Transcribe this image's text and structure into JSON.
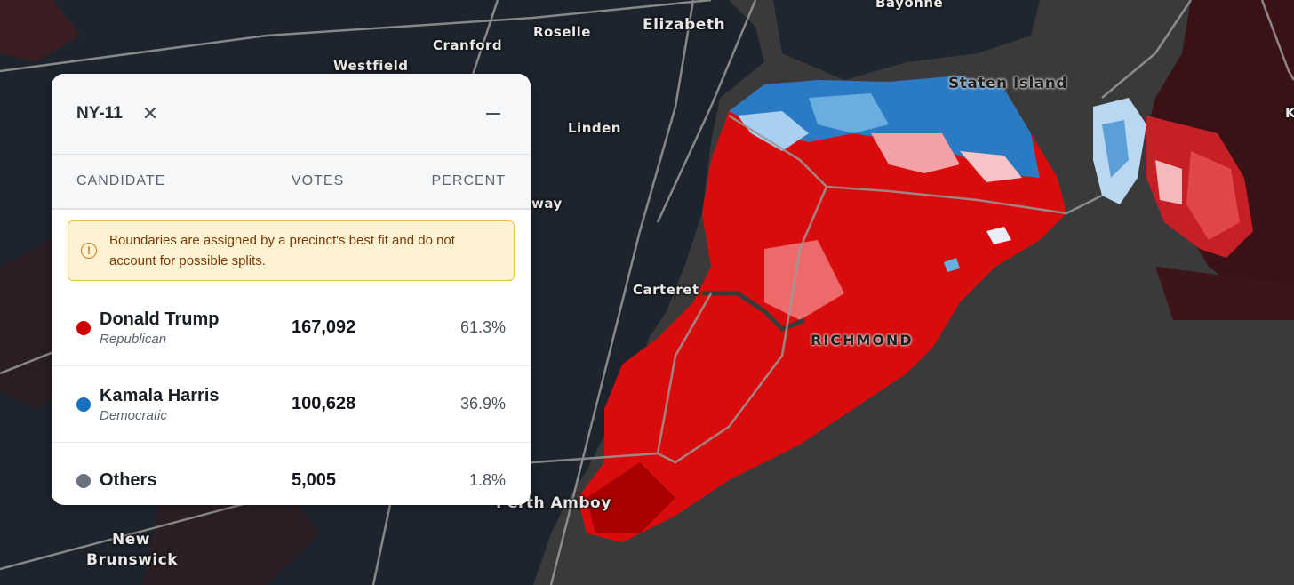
{
  "map": {
    "colors": {
      "water": "#3a3a3a",
      "land_dark": "#1f2630",
      "republican": "#d40000",
      "democratic": "#1870c0",
      "road": "#8a8a8a"
    },
    "labels": {
      "bayonne": "Bayonne",
      "elizabeth": "Elizabeth",
      "cranford": "Cranford",
      "roselle": "Roselle",
      "westfield": "Westfield",
      "linden": "Linden",
      "staten_island": "Staten Island",
      "way_fragment": "way",
      "carteret": "Carteret",
      "richmond": "RICHMOND",
      "perth_amboy": "Perth Amboy",
      "new_brunswick_1": "New",
      "new_brunswick_2": "Brunswick",
      "k_fragment": "K"
    }
  },
  "panel": {
    "district": "NY-11",
    "close_icon": "close-icon",
    "minimize_icon": "minimize-icon",
    "columns": {
      "candidate": "CANDIDATE",
      "votes": "VOTES",
      "percent": "PERCENT"
    },
    "note": "Boundaries are assigned by a precinct's best fit and do not account for possible splits.",
    "note_icon": "warning-circle-icon",
    "candidates": [
      {
        "name": "Donald Trump",
        "party": "Republican",
        "votes": "167,092",
        "percent": "61.3%",
        "color": "#cc0000"
      },
      {
        "name": "Kamala Harris",
        "party": "Democratic",
        "votes": "100,628",
        "percent": "36.9%",
        "color": "#1a70c0"
      },
      {
        "name": "Others",
        "party": "",
        "votes": "5,005",
        "percent": "1.8%",
        "color": "#6b7280"
      }
    ]
  }
}
